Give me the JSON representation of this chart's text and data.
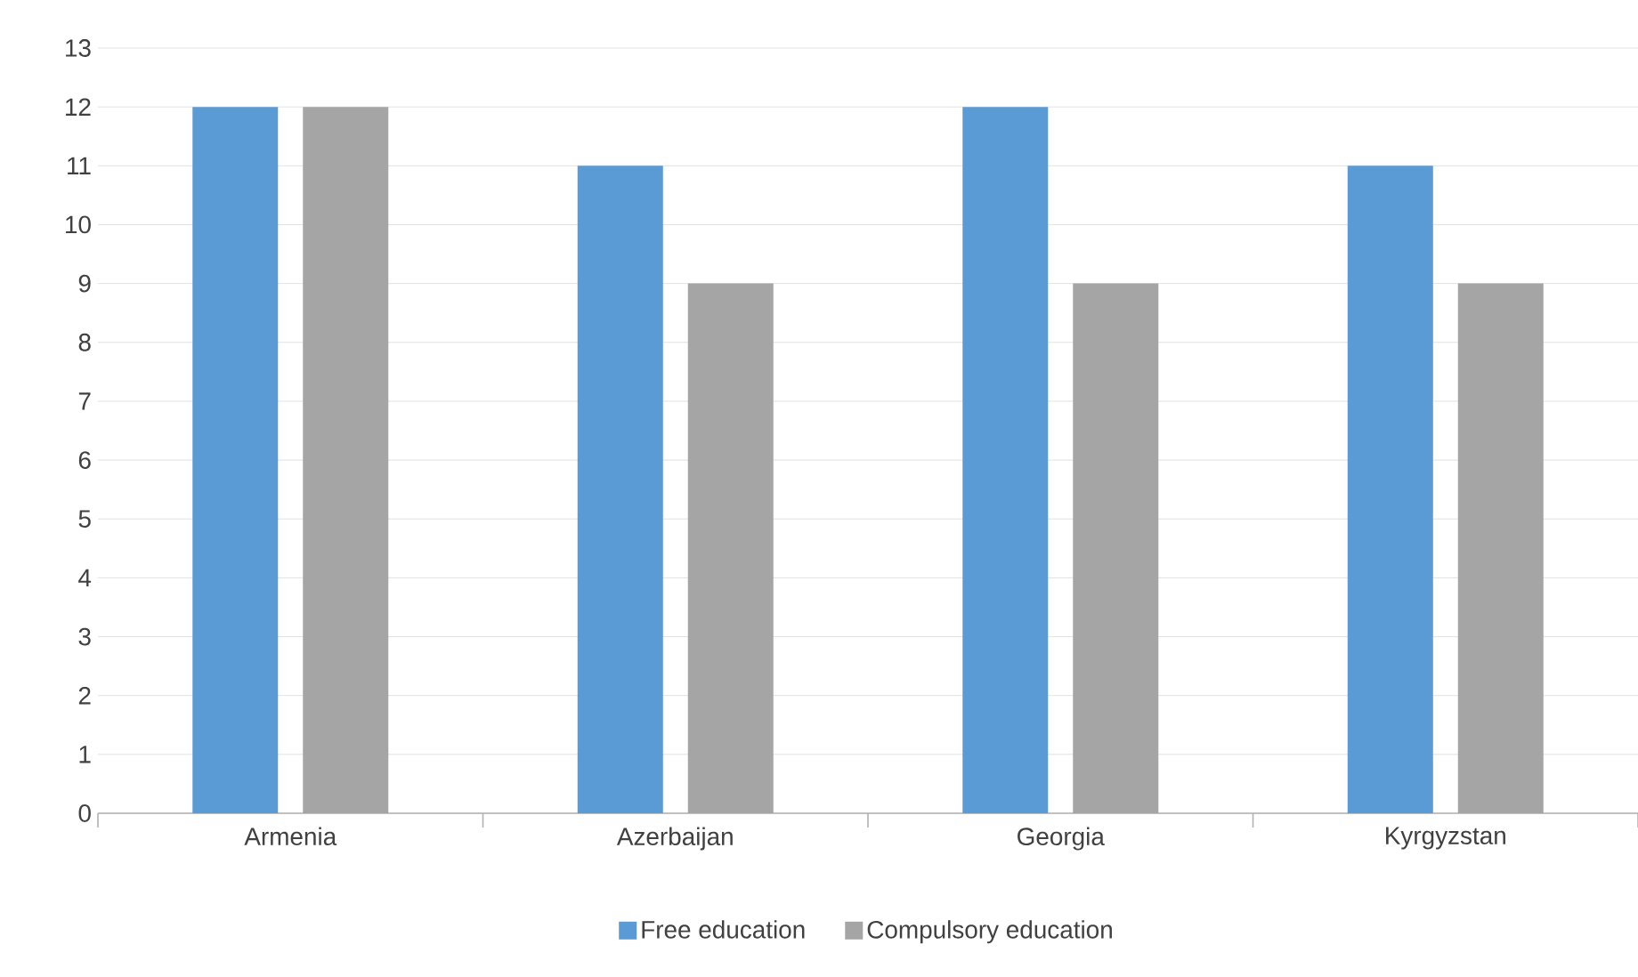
{
  "chart_data": {
    "type": "bar",
    "categories": [
      "Armenia",
      "Azerbaijan",
      "Georgia",
      "Kyrgyzstan"
    ],
    "series": [
      {
        "name": "Free education",
        "color": "#5b9bd5",
        "values": [
          12,
          11,
          12,
          11
        ]
      },
      {
        "name": "Compulsory education",
        "color": "#a5a5a5",
        "values": [
          12,
          9,
          9,
          9
        ]
      }
    ],
    "ylim": [
      0,
      13
    ],
    "yticks": [
      0,
      1,
      2,
      3,
      4,
      5,
      6,
      7,
      8,
      9,
      10,
      11,
      12,
      13
    ],
    "grid": "y",
    "legend": "bottom"
  }
}
